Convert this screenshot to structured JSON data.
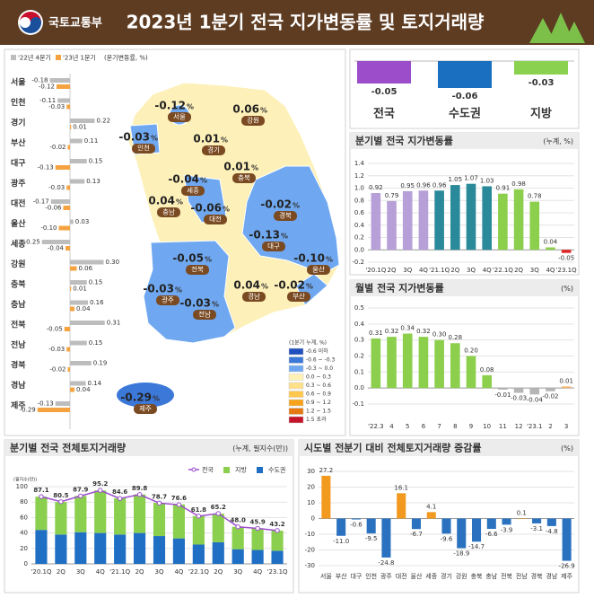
{
  "header": {
    "ministry": "국토교통부",
    "title": "2023년 1분기 전국 지가변동률 및 토지거래량"
  },
  "chart_data": [
    {
      "type": "hbar",
      "subtitle": "(분기변동률, %)",
      "categories": [
        "서울",
        "인천",
        "경기",
        "부산",
        "대구",
        "광주",
        "대전",
        "울산",
        "세종",
        "강원",
        "충북",
        "충남",
        "전북",
        "전남",
        "경북",
        "경남",
        "제주"
      ],
      "series": [
        {
          "name": "'22년 4분기",
          "color": "#bdbdbd",
          "values": [
            -0.18,
            -0.11,
            0.22,
            0.11,
            0.15,
            0.13,
            -0.17,
            0.03,
            -0.25,
            0.3,
            0.15,
            0.16,
            0.31,
            0.15,
            0.19,
            0.14,
            -0.13
          ],
          "value_labels": [
            "-0.18",
            "-0.11",
            "0.22",
            "0.11",
            "0.15",
            "0.13",
            "-0.17",
            "0.03",
            "-0.25",
            "0.30",
            "0.15",
            "0.16",
            "0.31",
            "0.15",
            "0.19",
            "0.14",
            "-0.13"
          ]
        },
        {
          "name": "'23년 1분기",
          "color": "#f4a340",
          "values": [
            -0.12,
            -0.03,
            0.01,
            -0.02,
            -0.13,
            -0.03,
            -0.06,
            -0.1,
            -0.04,
            0.06,
            0.01,
            0.04,
            -0.05,
            -0.03,
            -0.02,
            0.04,
            -0.29
          ],
          "value_labels": [
            "-0.12",
            "-0.03",
            "0.01",
            "-0.02",
            "-0.13",
            "-0.03",
            "-0.06",
            "-0.10",
            "-0.04",
            "0.06",
            "0.01",
            "0.04",
            "-0.05",
            "-0.03",
            "-0.02",
            "0.04",
            "-0.29"
          ]
        }
      ]
    },
    {
      "type": "map",
      "unit": "%",
      "legend_title": "(1분기 누계, %)",
      "legend": [
        {
          "label": "-0.6 이하",
          "color": "#1f4fbf"
        },
        {
          "label": "-0.6 ~ -0.3",
          "color": "#3c78d8"
        },
        {
          "label": "-0.3 ~ 0.0",
          "color": "#6fa8f0"
        },
        {
          "label": "0.0 ~ 0.3",
          "color": "#fff2b3"
        },
        {
          "label": "0.3 ~ 0.6",
          "color": "#ffe08a"
        },
        {
          "label": "0.6 ~ 0.9",
          "color": "#ffc84d"
        },
        {
          "label": "0.9 ~ 1.2",
          "color": "#f7a21b"
        },
        {
          "label": "1.2 ~ 1.5",
          "color": "#e57a12"
        },
        {
          "label": "1.5 초과",
          "color": "#c4142a"
        }
      ]
    },
    {
      "type": "summary",
      "categories": [
        "전국",
        "수도권",
        "지방"
      ],
      "values": [
        -0.05,
        -0.06,
        -0.03
      ],
      "colors": [
        "#9b4dca",
        "#1a6fc0",
        "#8bd150"
      ]
    },
    {
      "type": "bar",
      "title": "분기별 전국 지가변동률",
      "unit": "(누계, %)",
      "categories": [
        "'20.1Q",
        "2Q",
        "3Q",
        "4Q",
        "'21.1Q",
        "2Q",
        "3Q",
        "4Q",
        "'22.1Q",
        "2Q",
        "3Q",
        "4Q",
        "'23.1Q"
      ],
      "values": [
        0.92,
        0.79,
        0.95,
        0.96,
        0.96,
        1.05,
        1.07,
        1.03,
        0.91,
        0.98,
        0.78,
        0.04,
        -0.05
      ],
      "colors": [
        "#b7a0d8",
        "#b7a0d8",
        "#b7a0d8",
        "#b7a0d8",
        "#2a8a9a",
        "#2a8a9a",
        "#2a8a9a",
        "#2a8a9a",
        "#8ccf4d",
        "#8ccf4d",
        "#8ccf4d",
        "#8ccf4d",
        "#e02424"
      ],
      "ylim": [
        -0.2,
        1.4
      ],
      "yticks": [
        -0.2,
        {
          "value": 0,
          "label": "0.0"
        },
        0.2,
        0.4,
        0.6,
        0.8,
        {
          "value": 1,
          "label": "1.0"
        },
        1.2,
        1.4
      ]
    },
    {
      "type": "bar",
      "title": "월별 전국 지가변동률",
      "unit": "(%)",
      "categories": [
        "'22.3",
        "4",
        "5",
        "6",
        "7",
        "8",
        "9",
        "10",
        "11",
        "12",
        "'23.1",
        "2",
        "3"
      ],
      "values": [
        0.31,
        0.32,
        0.34,
        0.32,
        0.3,
        0.28,
        0.2,
        0.08,
        -0.01,
        -0.03,
        -0.04,
        -0.02,
        0.01
      ],
      "value_labels": [
        "0.31",
        "0.32",
        "0.34",
        "0.32",
        "0.30",
        "0.28",
        "0.20",
        "0.08",
        "-0.01",
        "-0.03",
        "-0.04",
        "-0.02",
        "0.01"
      ],
      "colors": [
        "#8ccf4d",
        "#8ccf4d",
        "#8ccf4d",
        "#8ccf4d",
        "#8ccf4d",
        "#8ccf4d",
        "#8ccf4d",
        "#8ccf4d",
        "#b5b5b5",
        "#b5b5b5",
        "#b5b5b5",
        "#b5b5b5",
        "#f6b26b"
      ],
      "ylim": [
        -0.1,
        0.5
      ],
      "yticks": [
        -0.1,
        {
          "value": 0,
          "label": "0.0"
        },
        0.1,
        0.2,
        0.3,
        0.4,
        0.5
      ]
    },
    {
      "type": "combo",
      "title": "분기별 전국 전체토지거래량",
      "unit": "(누계, 필지수(만))",
      "y_label": "(필지수(만))",
      "categories": [
        "'20.1Q",
        "2Q",
        "3Q",
        "4Q",
        "'21.1Q",
        "2Q",
        "3Q",
        "4Q",
        "'22.1Q",
        "2Q",
        "3Q",
        "4Q",
        "'23.1Q"
      ],
      "series": [
        {
          "name": "전국",
          "type": "line",
          "color": "#9c4dcc",
          "values": [
            87.1,
            80.5,
            87.9,
            95.2,
            84.6,
            89.8,
            78.7,
            76.6,
            61.8,
            65.2,
            48,
            45.9,
            43.2
          ],
          "value_labels": [
            "87.1",
            "80.5",
            "87.9",
            "95.2",
            "84.6",
            "89.8",
            "78.7",
            "76.6",
            "61.8",
            "65.2",
            "48.0",
            "45.9",
            "43.2"
          ]
        },
        {
          "name": "지방",
          "color": "#8bcf4e",
          "values": [
            43,
            42,
            47,
            55,
            47,
            50,
            43,
            44,
            37,
            37,
            29,
            28,
            26
          ]
        },
        {
          "name": "수도권",
          "color": "#1f6fc5",
          "values": [
            44,
            38,
            41,
            40,
            38,
            40,
            36,
            33,
            25,
            28,
            19,
            18,
            17
          ]
        }
      ],
      "ylim": [
        0,
        100
      ],
      "yticks": [
        0,
        20,
        40,
        60,
        80,
        100
      ]
    },
    {
      "type": "bar",
      "title": "시도별 전분기 대비 전체토지거래량 증감률",
      "unit": "(%)",
      "categories": [
        "서울",
        "부산",
        "대구",
        "인천",
        "광주",
        "대전",
        "울산",
        "세종",
        "경기",
        "강원",
        "충북",
        "충남",
        "전북",
        "전남",
        "경북",
        "경남",
        "제주"
      ],
      "values": [
        27.2,
        -11,
        -0.6,
        -9.5,
        -24.8,
        16.1,
        -6.7,
        4.1,
        -9.6,
        -18.9,
        -14.7,
        -6.6,
        -3.9,
        0.1,
        -3.1,
        -4.8,
        -26.9
      ],
      "value_labels": [
        "27.2",
        "-11.0",
        "-0.6",
        "-9.5",
        "-24.8",
        "16.1",
        "-6.7",
        "4.1",
        "-9.6",
        "-18.9",
        "-14.7",
        "-6.6",
        "-3.9",
        "0.1",
        "-3.1",
        "-4.8",
        "-26.9"
      ],
      "positive_color": "#f29a1f",
      "negative_color": "#2a72c0",
      "ylim": [
        -30,
        30
      ],
      "yticks": [
        -30,
        -20,
        -10,
        0,
        10,
        20,
        30
      ]
    }
  ]
}
